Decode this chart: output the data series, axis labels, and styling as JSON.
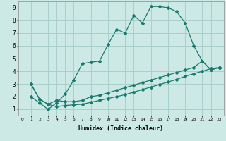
{
  "xlabel": "Humidex (Indice chaleur)",
  "background_color": "#cce9e5",
  "grid_color": "#aacfca",
  "line_color": "#1a7a6e",
  "xlim": [
    -0.5,
    23.5
  ],
  "ylim": [
    0.5,
    9.5
  ],
  "xticks": [
    0,
    1,
    2,
    3,
    4,
    5,
    6,
    7,
    8,
    9,
    10,
    11,
    12,
    13,
    14,
    15,
    16,
    17,
    18,
    19,
    20,
    21,
    22,
    23
  ],
  "yticks": [
    1,
    2,
    3,
    4,
    5,
    6,
    7,
    8,
    9
  ],
  "line1_x": [
    1,
    2,
    3,
    4,
    5,
    6,
    7,
    8,
    9,
    10,
    11,
    12,
    13,
    14,
    15,
    16,
    17,
    18,
    19,
    20,
    21,
    22,
    23
  ],
  "line1_y": [
    2.0,
    1.5,
    1.0,
    1.5,
    2.2,
    3.3,
    4.6,
    4.7,
    4.8,
    6.1,
    7.3,
    7.0,
    8.4,
    7.8,
    9.1,
    9.1,
    9.0,
    8.7,
    7.8,
    6.0,
    4.8,
    4.1,
    4.3
  ],
  "line2_x": [
    1,
    2,
    3,
    4,
    5,
    6,
    7,
    8,
    9,
    10,
    11,
    12,
    13,
    14,
    15,
    16,
    17,
    18,
    19,
    20,
    21,
    22,
    23
  ],
  "line2_y": [
    3.0,
    1.8,
    1.4,
    1.7,
    1.6,
    1.6,
    1.7,
    2.0,
    2.1,
    2.3,
    2.5,
    2.7,
    2.9,
    3.1,
    3.3,
    3.5,
    3.7,
    3.9,
    4.1,
    4.3,
    4.8,
    4.1,
    4.3
  ],
  "line3_x": [
    1,
    2,
    3,
    4,
    5,
    6,
    7,
    8,
    9,
    10,
    11,
    12,
    13,
    14,
    15,
    16,
    17,
    18,
    19,
    20,
    21,
    22,
    23
  ],
  "line3_y": [
    3.0,
    1.8,
    1.4,
    1.2,
    1.3,
    1.35,
    1.4,
    1.55,
    1.7,
    1.85,
    2.0,
    2.15,
    2.35,
    2.55,
    2.75,
    2.95,
    3.15,
    3.35,
    3.6,
    3.8,
    4.0,
    4.2,
    4.3
  ]
}
